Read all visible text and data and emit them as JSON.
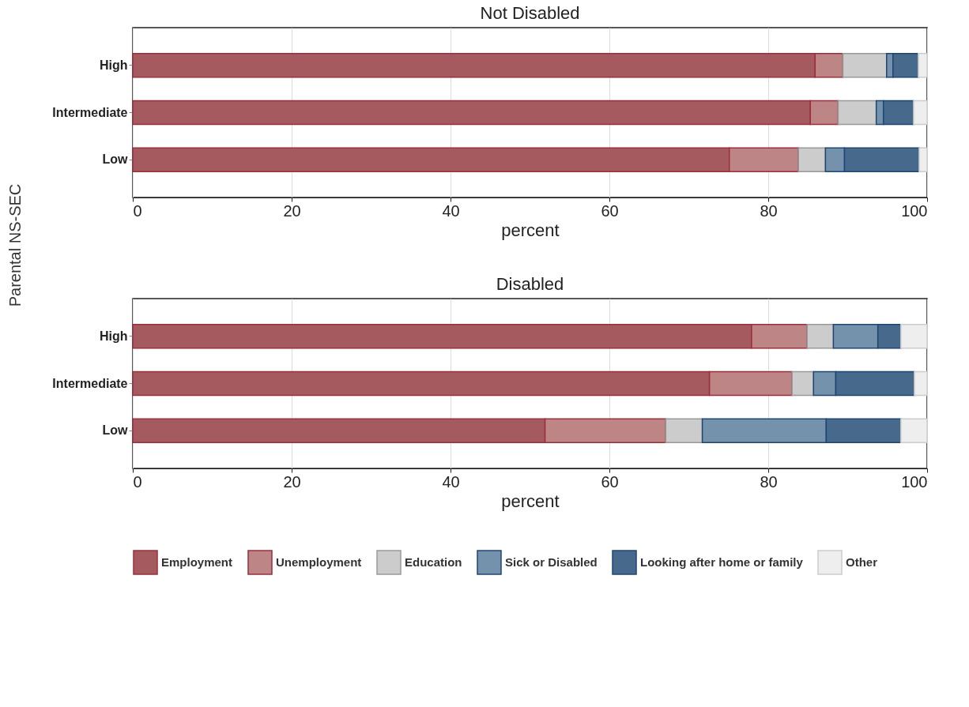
{
  "chart_data": [
    {
      "type": "bar",
      "orientation": "horizontal",
      "stacked": true,
      "title": "Not Disabled",
      "xlabel": "percent",
      "ylabel": "Parental NS-SEC",
      "categories": [
        "High",
        "Intermediate",
        "Low"
      ],
      "xlim": [
        0,
        100
      ],
      "xticks": [
        0,
        20,
        40,
        60,
        80,
        100
      ],
      "grid": "x",
      "legend": "bottom",
      "series": [
        {
          "name": "Employment",
          "color": "#a45a5f",
          "values": [
            85.9,
            85.3,
            75.1
          ]
        },
        {
          "name": "Unemployment",
          "color": "#bd8586",
          "values": [
            3.5,
            3.5,
            8.7
          ]
        },
        {
          "name": "Education",
          "color": "#cccccc",
          "values": [
            5.5,
            4.8,
            3.4
          ]
        },
        {
          "name": "Sick or Disabled",
          "color": "#7592ad",
          "values": [
            0.8,
            0.9,
            2.4
          ]
        },
        {
          "name": "Looking after home or family",
          "color": "#46698c",
          "values": [
            3.2,
            3.8,
            9.4
          ]
        },
        {
          "name": "Other",
          "color": "#eeeeee",
          "values": [
            1.1,
            1.7,
            1.0
          ]
        }
      ]
    },
    {
      "type": "bar",
      "orientation": "horizontal",
      "stacked": true,
      "title": "Disabled",
      "xlabel": "percent",
      "categories": [
        "High",
        "Intermediate",
        "Low"
      ],
      "xlim": [
        0,
        100
      ],
      "xticks": [
        0,
        20,
        40,
        60,
        80,
        100
      ],
      "grid": "x",
      "legend": "bottom",
      "series": [
        {
          "name": "Employment",
          "color": "#a45a5f",
          "values": [
            77.9,
            72.6,
            51.9
          ]
        },
        {
          "name": "Unemployment",
          "color": "#bd8586",
          "values": [
            7.0,
            10.4,
            15.2
          ]
        },
        {
          "name": "Education",
          "color": "#cccccc",
          "values": [
            3.3,
            2.7,
            4.6
          ]
        },
        {
          "name": "Sick or Disabled",
          "color": "#7592ad",
          "values": [
            5.6,
            2.8,
            15.6
          ]
        },
        {
          "name": "Looking after home or family",
          "color": "#46698c",
          "values": [
            2.9,
            9.9,
            9.4
          ]
        },
        {
          "name": "Other",
          "color": "#eeeeee",
          "values": [
            3.3,
            1.6,
            3.3
          ]
        }
      ]
    }
  ]
}
